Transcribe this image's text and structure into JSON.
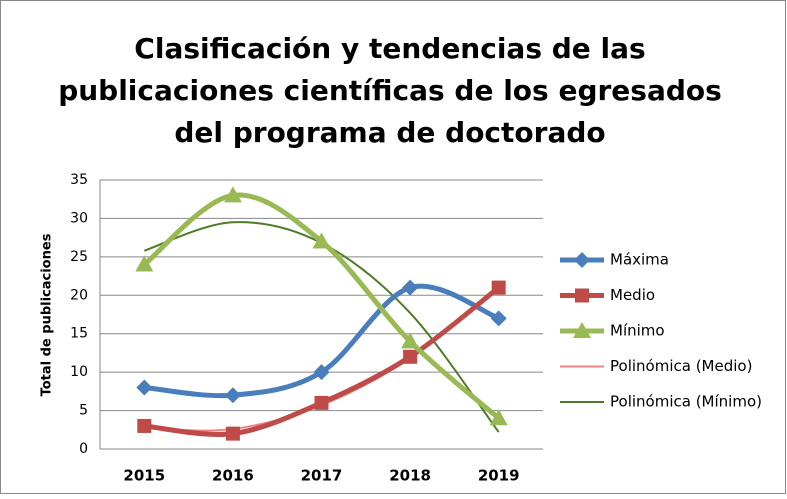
{
  "chart_data": {
    "type": "line",
    "title": [
      "Clasificación  y tendencias de las",
      "publicaciones científicas de los egresados",
      "del programa de doctorado"
    ],
    "y_label": "Total de publicaciones",
    "categories": [
      "2015",
      "2016",
      "2017",
      "2018",
      "2019"
    ],
    "series": [
      {
        "name": "Máxima",
        "color": "#4a7ebb",
        "marker": "diamond",
        "values": [
          8,
          7,
          10,
          21,
          17
        ]
      },
      {
        "name": "Medio",
        "color": "#be4b48",
        "marker": "square",
        "values": [
          3,
          2,
          6,
          12,
          21
        ]
      },
      {
        "name": "Mínimo",
        "color": "#98b954",
        "marker": "triangle",
        "values": [
          24,
          33,
          27,
          14,
          4
        ]
      },
      {
        "name": "Polinómica (Medio)",
        "color": "#f28282",
        "marker": "none",
        "values": [
          2.7,
          2.6,
          5.7,
          11.8,
          20.9
        ]
      },
      {
        "name": "Polinómica (Mínimo)",
        "color": "#4f7a28",
        "marker": "none",
        "values": [
          25.8,
          29.5,
          26.8,
          17.7,
          2.2
        ]
      }
    ],
    "ylim": [
      0,
      35
    ],
    "yticks": [
      0,
      5,
      10,
      15,
      20,
      25,
      30,
      35
    ],
    "grid": true,
    "legend": "right"
  }
}
